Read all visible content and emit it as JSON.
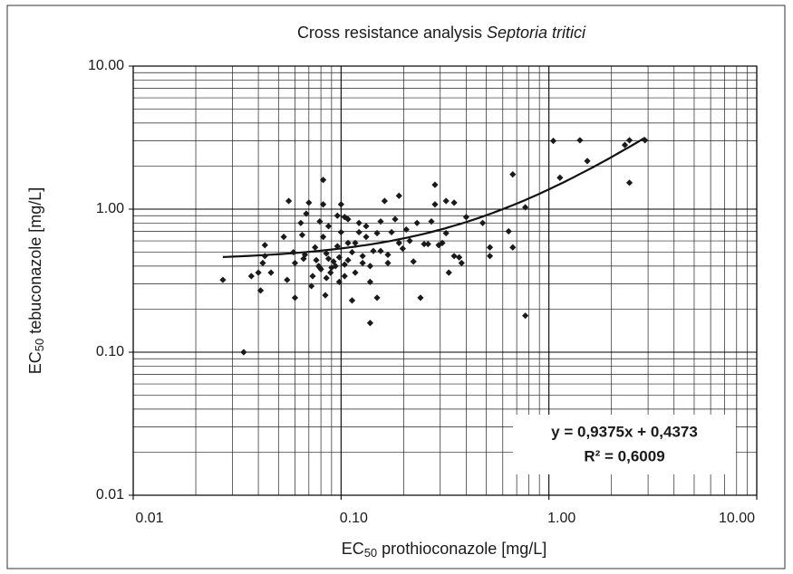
{
  "chart_data": {
    "type": "scatter",
    "title": {
      "text": "Cross resistance analysis ",
      "italic": "Septoria tritici"
    },
    "xlabel": {
      "text": "EC",
      "sub": "50",
      "rest": " prothioconazole [mg/L]"
    },
    "ylabel": {
      "text": "EC",
      "sub": "50",
      "rest": " tebuconazole [mg/L]"
    },
    "xscale": "log",
    "yscale": "log",
    "grid": true,
    "minor_grid": true,
    "color": "#1a1a1a",
    "xlim": [
      0.01,
      10
    ],
    "ylim": [
      0.01,
      10
    ],
    "xticks": [
      {
        "value": 0.01,
        "label": "0.01"
      },
      {
        "value": 0.1,
        "label": "0.10"
      },
      {
        "value": 1,
        "label": "1.00"
      },
      {
        "value": 10,
        "label": "10.00"
      }
    ],
    "yticks": [
      {
        "value": 0.01,
        "label": "0.01"
      },
      {
        "value": 0.1,
        "label": "0.10"
      },
      {
        "value": 1,
        "label": "1.00"
      },
      {
        "value": 10,
        "label": "10.00"
      }
    ],
    "x": [
      0.027,
      0.034,
      0.037,
      0.04,
      0.041,
      0.042,
      0.043,
      0.043,
      0.046,
      0.053,
      0.055,
      0.056,
      0.059,
      0.06,
      0.06,
      0.064,
      0.065,
      0.066,
      0.067,
      0.068,
      0.07,
      0.072,
      0.073,
      0.075,
      0.076,
      0.078,
      0.079,
      0.079,
      0.08,
      0.082,
      0.082,
      0.082,
      0.084,
      0.085,
      0.085,
      0.087,
      0.087,
      0.089,
      0.09,
      0.092,
      0.094,
      0.096,
      0.096,
      0.098,
      0.098,
      0.1,
      0.1,
      0.104,
      0.104,
      0.104,
      0.108,
      0.108,
      0.108,
      0.113,
      0.113,
      0.117,
      0.117,
      0.122,
      0.122,
      0.127,
      0.127,
      0.132,
      0.132,
      0.138,
      0.138,
      0.138,
      0.143,
      0.149,
      0.149,
      0.155,
      0.155,
      0.162,
      0.168,
      0.168,
      0.175,
      0.182,
      0.19,
      0.19,
      0.198,
      0.206,
      0.214,
      0.223,
      0.232,
      0.241,
      0.251,
      0.262,
      0.272,
      0.283,
      0.283,
      0.295,
      0.307,
      0.32,
      0.32,
      0.33,
      0.35,
      0.35,
      0.37,
      0.38,
      0.4,
      0.48,
      0.52,
      0.52,
      0.64,
      0.67,
      0.67,
      0.77,
      0.77,
      1.13,
      1.05,
      1.41,
      1.53,
      2.32,
      2.44,
      2.44,
      2.9
    ],
    "y": [
      0.32,
      0.1,
      0.34,
      0.36,
      0.27,
      0.42,
      0.56,
      0.47,
      0.36,
      0.64,
      0.32,
      1.14,
      0.5,
      0.42,
      0.24,
      0.8,
      0.66,
      0.45,
      0.48,
      0.93,
      1.11,
      0.29,
      0.34,
      0.54,
      0.44,
      0.4,
      0.82,
      0.39,
      0.38,
      1.08,
      1.6,
      0.64,
      0.25,
      0.33,
      0.49,
      0.76,
      0.45,
      0.36,
      0.39,
      0.43,
      0.4,
      0.55,
      0.9,
      0.31,
      0.46,
      0.69,
      1.08,
      0.41,
      0.34,
      0.88,
      0.58,
      0.85,
      0.44,
      0.5,
      0.23,
      0.36,
      0.58,
      0.8,
      0.69,
      0.42,
      0.47,
      0.64,
      0.76,
      0.4,
      0.31,
      0.16,
      0.51,
      0.68,
      0.24,
      0.82,
      0.51,
      1.14,
      0.42,
      0.48,
      0.69,
      0.85,
      1.24,
      0.58,
      0.53,
      0.72,
      0.6,
      0.43,
      0.8,
      0.24,
      0.57,
      0.57,
      0.82,
      1.48,
      1.08,
      0.56,
      0.58,
      1.14,
      0.68,
      0.36,
      0.47,
      1.11,
      0.46,
      0.42,
      0.88,
      0.8,
      0.54,
      0.47,
      0.7,
      0.54,
      1.75,
      1.03,
      0.18,
      1.66,
      3.0,
      3.03,
      2.17,
      2.81,
      1.53,
      3.03,
      3.03
    ],
    "trendline": {
      "slope": 0.9375,
      "intercept": 0.4373,
      "xlim": [
        0.027,
        2.9
      ],
      "label": "y = 0,9375x + 0,4373",
      "r2": {
        "value": 0.6009,
        "label": "R² = 0,6009"
      }
    }
  }
}
